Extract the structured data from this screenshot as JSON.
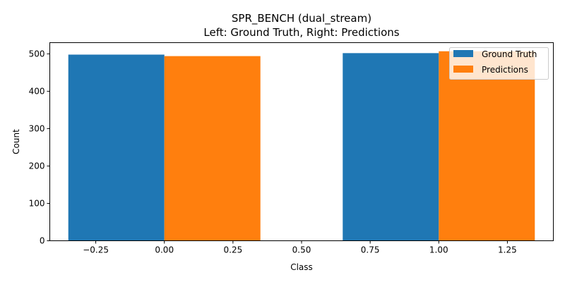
{
  "chart_data": {
    "type": "bar",
    "title_line1": "SPR_BENCH (dual_stream)",
    "title_line2": "Left: Ground Truth, Right: Predictions",
    "xlabel": "Class",
    "ylabel": "Count",
    "xlim": [
      -0.4175,
      1.4175
    ],
    "ylim": [
      0,
      530
    ],
    "x_ticks": [
      -0.25,
      0.0,
      0.25,
      0.5,
      0.75,
      1.0,
      1.25
    ],
    "x_tick_labels": [
      "−0.25",
      "0.00",
      "0.25",
      "0.50",
      "0.75",
      "1.00",
      "1.25"
    ],
    "y_ticks": [
      0,
      100,
      200,
      300,
      400,
      500
    ],
    "y_tick_labels": [
      "0",
      "100",
      "200",
      "300",
      "400",
      "500"
    ],
    "bar_width": 0.35,
    "categories": [
      0,
      1
    ],
    "series": [
      {
        "name": "Ground Truth",
        "offset": -0.175,
        "values": [
          498,
          502
        ],
        "color": "#1f77b4"
      },
      {
        "name": "Predictions",
        "offset": 0.175,
        "values": [
          494,
          507
        ],
        "color": "#ff7f0e"
      }
    ],
    "legend_position": "top-right",
    "grid": false
  }
}
